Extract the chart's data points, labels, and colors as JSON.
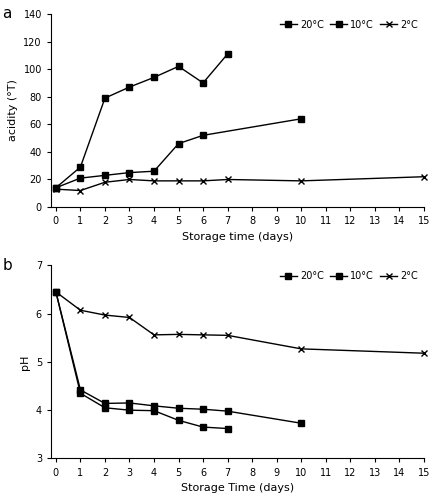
{
  "panel_a": {
    "title": "a",
    "ylabel": "acidity (°T)",
    "xlabel": "Storage time (days)",
    "xlim": [
      -0.2,
      15
    ],
    "ylim": [
      0,
      140
    ],
    "yticks": [
      0,
      20,
      40,
      60,
      80,
      100,
      120,
      140
    ],
    "xticks": [
      0,
      1,
      2,
      3,
      4,
      5,
      6,
      7,
      8,
      9,
      10,
      11,
      12,
      13,
      14,
      15
    ],
    "series": {
      "20C": {
        "x": [
          0,
          1,
          2,
          3,
          4,
          5,
          6,
          7
        ],
        "y": [
          14,
          29,
          79,
          87,
          94,
          102,
          90,
          111
        ],
        "label": "20°C",
        "marker": "s",
        "markersize": 4
      },
      "10C": {
        "x": [
          0,
          1,
          2,
          3,
          4,
          5,
          6,
          10
        ],
        "y": [
          14,
          21,
          23,
          25,
          26,
          46,
          52,
          64
        ],
        "label": "10°C",
        "marker": "s",
        "markersize": 4
      },
      "2C": {
        "x": [
          0,
          1,
          2,
          3,
          4,
          5,
          6,
          7,
          10,
          15
        ],
        "y": [
          13,
          12,
          18,
          20,
          19,
          19,
          19,
          20,
          19,
          22
        ],
        "label": "2°C",
        "marker": "x",
        "markersize": 5
      }
    }
  },
  "panel_b": {
    "title": "b",
    "ylabel": "pH",
    "xlabel": "Storage Time (days)",
    "xlim": [
      -0.2,
      15
    ],
    "ylim": [
      3,
      7
    ],
    "yticks": [
      3,
      4,
      5,
      6,
      7
    ],
    "xticks": [
      0,
      1,
      2,
      3,
      4,
      5,
      6,
      7,
      8,
      9,
      10,
      11,
      12,
      13,
      14,
      15
    ],
    "series": {
      "20C": {
        "x": [
          0,
          1,
          2,
          3,
          4,
          5,
          6,
          7
        ],
        "y": [
          6.45,
          4.35,
          4.05,
          4.0,
          3.99,
          3.79,
          3.65,
          3.62
        ],
        "label": "20°C",
        "marker": "s",
        "markersize": 4
      },
      "10C": {
        "x": [
          0,
          1,
          2,
          3,
          4,
          5,
          6,
          7,
          10
        ],
        "y": [
          6.45,
          4.42,
          4.14,
          4.15,
          4.09,
          4.04,
          4.02,
          3.98,
          3.73
        ],
        "label": "10°C",
        "marker": "s",
        "markersize": 4
      },
      "2C": {
        "x": [
          0,
          1,
          2,
          3,
          4,
          5,
          6,
          7,
          10,
          15
        ],
        "y": [
          6.45,
          6.07,
          5.97,
          5.92,
          5.56,
          5.57,
          5.56,
          5.55,
          5.27,
          5.18
        ],
        "label": "2°C",
        "marker": "x",
        "markersize": 5
      }
    }
  },
  "line_color": "#000000",
  "label_fontsize": 8,
  "tick_fontsize": 7,
  "legend_fontsize": 7,
  "linewidth": 1.0
}
